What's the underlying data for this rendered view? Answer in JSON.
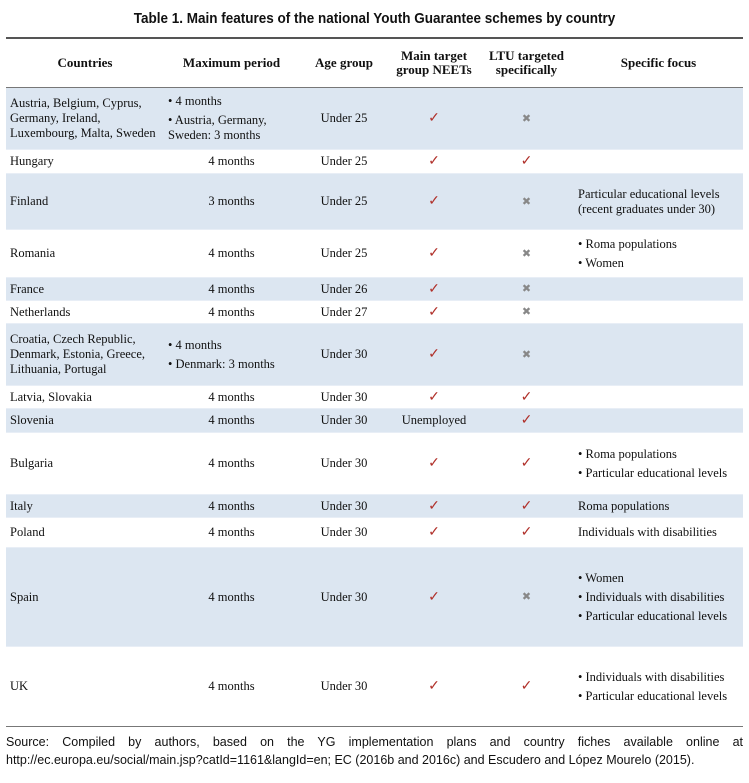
{
  "title": "Table 1. Main features of the national Youth Guarantee schemes by country",
  "headers": [
    "Countries",
    "Maximum period",
    "Age group",
    "Main target group NEETs",
    "LTU targeted specifically",
    "Specific focus"
  ],
  "rows": [
    {
      "country": "Austria, Belgium, Cyprus, Germany, Ireland, Luxembourg, Malta, Sweden",
      "period": [
        "• 4 months",
        "• Austria, Germany, Sweden: 3 months"
      ],
      "age": "Under 25",
      "neet": "check",
      "ltu": "cross",
      "focus": [],
      "h": 62
    },
    {
      "country": "Hungary",
      "period": [
        "4 months"
      ],
      "age": "Under 25",
      "neet": "check",
      "ltu": "check",
      "focus": [],
      "h": 24
    },
    {
      "country": "Finland",
      "period": [
        "3 months"
      ],
      "age": "Under 25",
      "neet": "check",
      "ltu": "cross",
      "focus": [
        "Particular educational levels (recent graduates under 30)"
      ],
      "h": 56
    },
    {
      "country": "Romania",
      "period": [
        "4 months"
      ],
      "age": "Under 25",
      "neet": "check",
      "ltu": "cross",
      "focus": [
        "• Roma populations",
        "• Women"
      ],
      "h": 48
    },
    {
      "country": "France",
      "period": [
        "4 months"
      ],
      "age": "Under 26",
      "neet": "check",
      "ltu": "cross",
      "focus": [],
      "h": 23
    },
    {
      "country": "Netherlands",
      "period": [
        "4 months"
      ],
      "age": "Under 27",
      "neet": "check",
      "ltu": "cross",
      "focus": [],
      "h": 23
    },
    {
      "country": "Croatia, Czech Republic, Denmark, Estonia, Greece, Lithuania, Portugal",
      "period": [
        "• 4 months",
        "• Denmark: 3 months"
      ],
      "age": "Under 30",
      "neet": "check",
      "ltu": "cross",
      "focus": [],
      "h": 62
    },
    {
      "country": "Latvia, Slovakia",
      "period": [
        "4 months"
      ],
      "age": "Under 30",
      "neet": "check",
      "ltu": "check",
      "focus": [],
      "h": 23
    },
    {
      "country": "Slovenia",
      "period": [
        "4 months"
      ],
      "age": "Under 30",
      "neet": "Unemployed",
      "ltu": "check",
      "focus": [],
      "h": 24
    },
    {
      "country": "Bulgaria",
      "period": [
        "4 months"
      ],
      "age": "Under 30",
      "neet": "check",
      "ltu": "check",
      "focus": [
        "• Roma populations",
        "• Particular educational levels"
      ],
      "h": 62
    },
    {
      "country": "Italy",
      "period": [
        "4 months"
      ],
      "age": "Under 30",
      "neet": "check",
      "ltu": "check",
      "focus": [
        "Roma populations"
      ],
      "h": 23
    },
    {
      "country": "Poland",
      "period": [
        "4 months"
      ],
      "age": "Under 30",
      "neet": "check",
      "ltu": "check",
      "focus": [
        "Individuals with disabilities"
      ],
      "h": 30
    },
    {
      "country": "Spain",
      "period": [
        "4 months"
      ],
      "age": "Under 30",
      "neet": "check",
      "ltu": "cross",
      "focus": [
        "• Women",
        "• Individuals with disabilities",
        "• Particular educational levels"
      ],
      "h": 99
    },
    {
      "country": "UK",
      "period": [
        "4 months"
      ],
      "age": "Under 30",
      "neet": "check",
      "ltu": "check",
      "focus": [
        "• Individuals with disabilities",
        "• Particular educational levels"
      ],
      "h": 80
    }
  ],
  "source": "Source: Compiled by authors, based on the YG implementation plans and country fiches available online at http://ec.europa.eu/social/main.jsp?catId=1161&langId=en; EC (2016b and 2016c) and Escudero and López Mourelo (2015)."
}
